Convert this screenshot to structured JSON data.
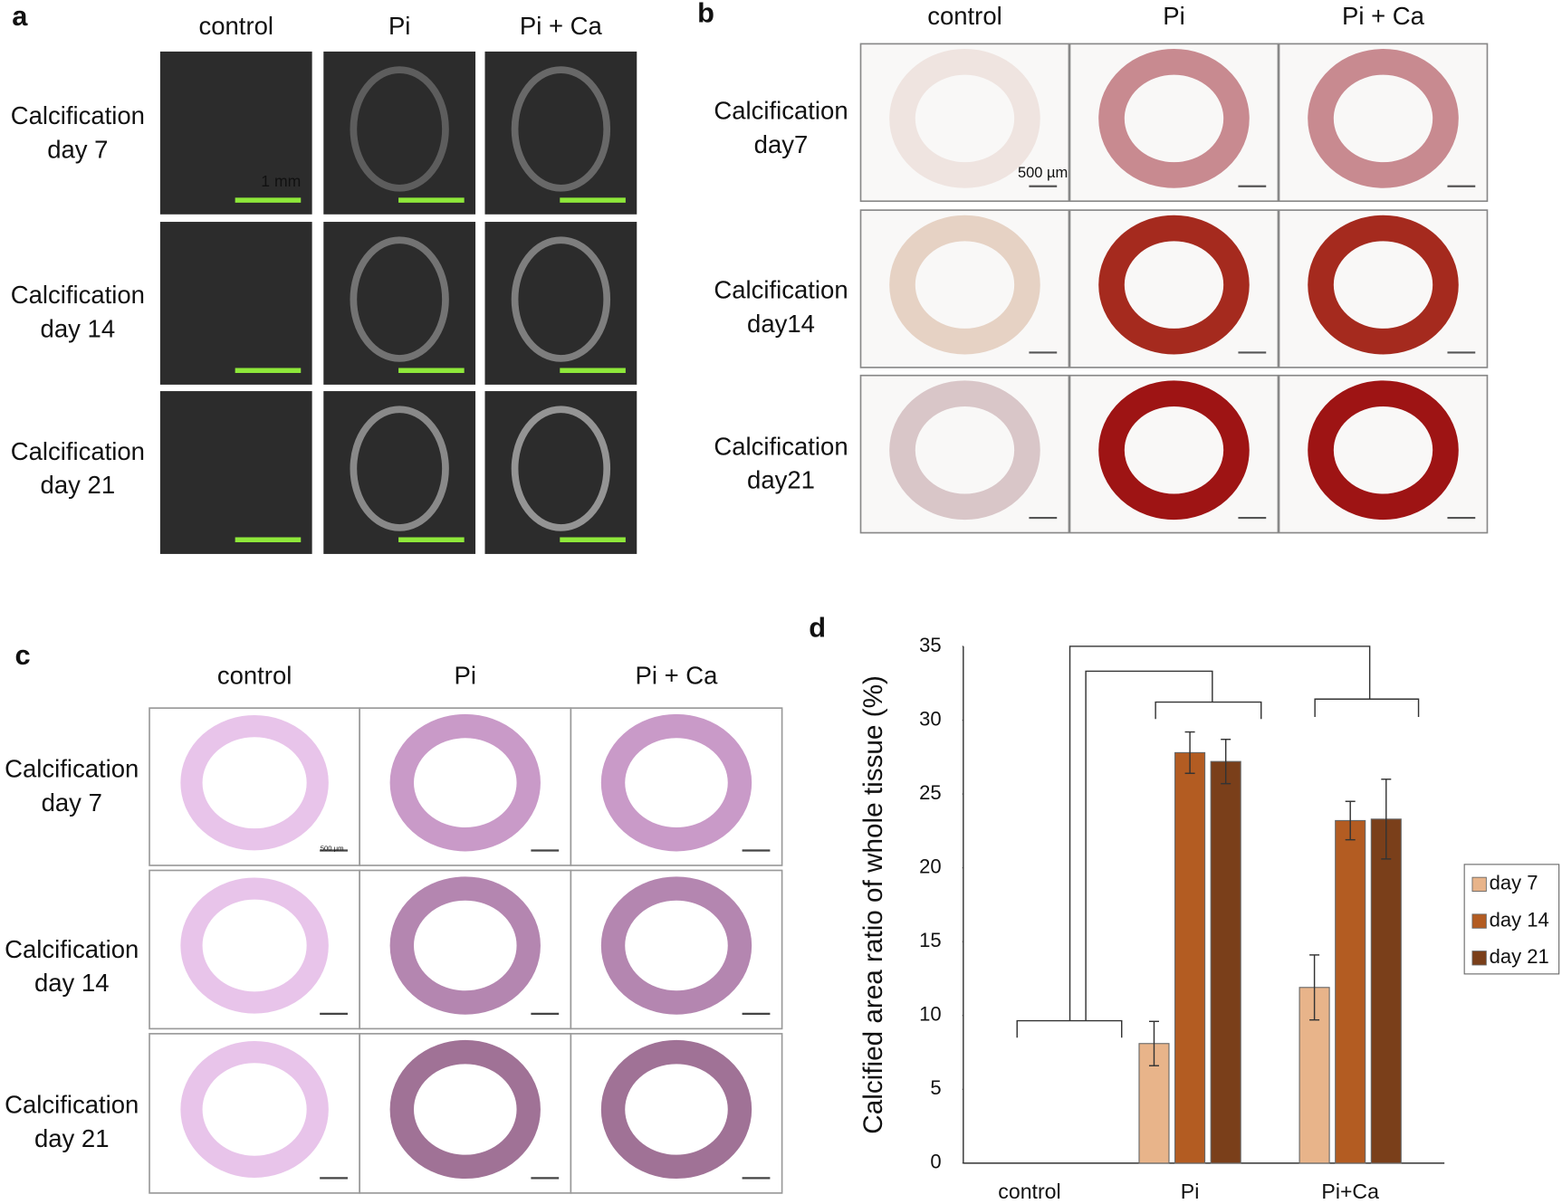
{
  "panels": {
    "a": {
      "label": "a",
      "columns": [
        "control",
        "Pi",
        "Pi + Ca"
      ],
      "rows": [
        [
          "Calcification",
          "day 7"
        ],
        [
          "Calcification",
          "day 14"
        ],
        [
          "Calcification",
          "day 21"
        ]
      ],
      "scale_label": "1 mm"
    },
    "b": {
      "label": "b",
      "columns": [
        "control",
        "Pi",
        "Pi + Ca"
      ],
      "rows": [
        [
          "Calcification",
          "day7"
        ],
        [
          "Calcification",
          "day14"
        ],
        [
          "Calcification",
          "day21"
        ]
      ],
      "scale_label": "500 µm"
    },
    "c": {
      "label": "c",
      "columns": [
        "control",
        "Pi",
        "Pi + Ca"
      ],
      "rows": [
        [
          "Calcification",
          "day 7"
        ],
        [
          "Calcification",
          "day 14"
        ],
        [
          "Calcification",
          "day 21"
        ]
      ],
      "scale_label": "500 µm"
    }
  },
  "chart_data": {
    "type": "bar",
    "label": "d",
    "y_label": "Calcified area ratio of whole tissue (%)",
    "categories": [
      "control",
      "Pi",
      "Pi+Ca"
    ],
    "series": [
      {
        "name": "day 7",
        "color": "#e8b48a",
        "values": [
          0,
          8.1,
          11.9
        ],
        "errors": [
          0,
          1.5,
          2.2
        ]
      },
      {
        "name": "day 14",
        "color": "#b35c22",
        "values": [
          0,
          27.8,
          23.2
        ],
        "errors": [
          0,
          1.4,
          1.3
        ]
      },
      {
        "name": "day 21",
        "color": "#7a3f1a",
        "values": [
          0,
          27.2,
          23.3
        ],
        "errors": [
          0,
          1.5,
          2.7
        ]
      }
    ],
    "ylim": [
      0,
      35
    ],
    "yticks": [
      0,
      5,
      10,
      15,
      20,
      25,
      30,
      35
    ],
    "grid": false,
    "legend": "right"
  }
}
